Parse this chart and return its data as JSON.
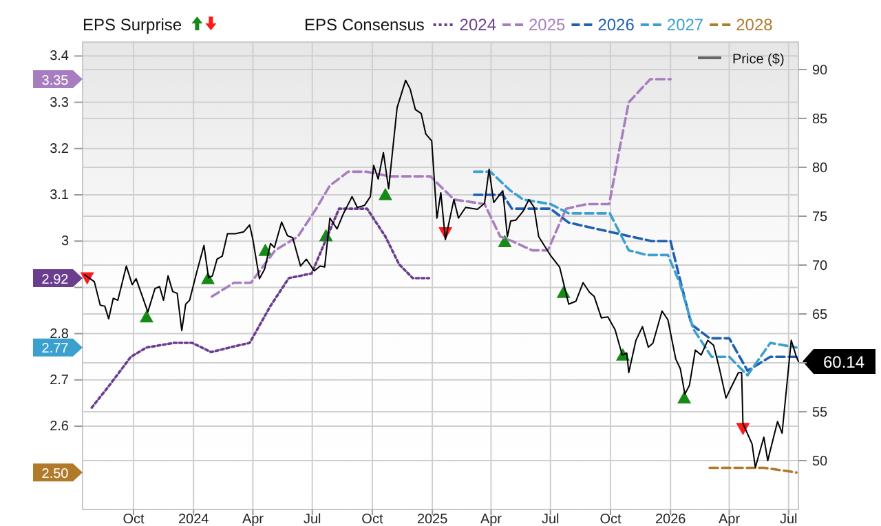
{
  "chart_data": {
    "type": "line",
    "legend_title": "EPS Consensus",
    "legend": "top",
    "grid": true,
    "xlim": [
      "2023-07-15",
      "2026-07-16"
    ],
    "xticks": [
      {
        "value": "2023-10-01",
        "label": "Oct"
      },
      {
        "value": "2024-01-01",
        "label": "2024"
      },
      {
        "value": "2024-04-01",
        "label": "Apr"
      },
      {
        "value": "2024-07-01",
        "label": "Jul"
      },
      {
        "value": "2024-10-01",
        "label": "Oct"
      },
      {
        "value": "2025-01-01",
        "label": "2025"
      },
      {
        "value": "2025-04-01",
        "label": "Apr"
      },
      {
        "value": "2025-07-01",
        "label": "Jul"
      },
      {
        "value": "2025-10-01",
        "label": "Oct"
      },
      {
        "value": "2026-01-01",
        "label": "2026"
      },
      {
        "value": "2026-04-01",
        "label": "Apr"
      },
      {
        "value": "2026-07-01",
        "label": "Jul"
      }
    ],
    "ylim": [
      2.42,
      3.43
    ],
    "yticks": [
      2.6,
      2.7,
      2.8,
      {
        "value": 2.9,
        "label": null
      },
      3,
      3.1,
      3.2,
      3.3,
      3.4
    ],
    "y2lim": [
      45,
      92.8
    ],
    "y2ticks": [
      50,
      55,
      {
        "value": 60,
        "label": null
      },
      65,
      70,
      75,
      80,
      85,
      90
    ],
    "annotations": [
      "EPS Surprise",
      "2.92",
      "3.35",
      "2.77",
      "2.50"
    ],
    "series": [
      {
        "name": "2024",
        "color": "#6a3d8f",
        "line_style": "dotted",
        "x": [
          "2023-07-29",
          "2023-08-26",
          "2023-09-27",
          "2023-10-21",
          "2023-12-02",
          "2023-12-30",
          "2024-01-28",
          "2024-02-25",
          "2024-03-27",
          "2024-04-28",
          "2024-05-26",
          "2024-06-30",
          "2024-08-11",
          "2024-09-23",
          "2024-10-21",
          "2024-11-11",
          "2024-12-02",
          "2024-12-27"
        ],
        "values": [
          2.64,
          2.69,
          2.75,
          2.77,
          2.78,
          2.78,
          2.76,
          2.77,
          2.78,
          2.86,
          2.92,
          2.93,
          3.07,
          3.07,
          3.01,
          2.95,
          2.92,
          2.92
        ]
      },
      {
        "name": "2025",
        "color": "#a77dc0",
        "line_style": "dashed",
        "x": [
          "2024-01-29",
          "2024-03-03",
          "2024-03-29",
          "2024-05-05",
          "2024-06-09",
          "2024-07-07",
          "2024-07-28",
          "2024-08-25",
          "2024-09-22",
          "2024-10-27",
          "2024-12-01",
          "2024-12-29",
          "2025-02-03",
          "2025-03-22",
          "2025-04-15",
          "2025-05-03",
          "2025-06-03",
          "2025-06-27",
          "2025-07-25",
          "2025-08-26",
          "2025-09-29",
          "2025-10-15",
          "2025-10-29",
          "2025-12-01",
          "2026-01-01"
        ],
        "values": [
          2.88,
          2.91,
          2.91,
          2.98,
          3.01,
          3.07,
          3.12,
          3.15,
          3.15,
          3.14,
          3.14,
          3.14,
          3.09,
          3.08,
          3.01,
          3.0,
          2.98,
          2.98,
          3.07,
          3.08,
          3.08,
          3.2,
          3.3,
          3.35,
          3.35
        ]
      },
      {
        "name": "2026",
        "color": "#2060b0",
        "line_style": "dashed",
        "x": [
          "2025-03-06",
          "2025-03-31",
          "2025-04-19",
          "2025-05-03",
          "2025-07-01",
          "2025-07-29",
          "2025-09-30",
          "2025-12-03",
          "2026-01-01",
          "2026-01-15",
          "2026-02-02",
          "2026-03-02",
          "2026-04-01",
          "2026-04-29",
          "2026-06-03",
          "2026-07-13"
        ],
        "values": [
          3.1,
          3.1,
          3.1,
          3.07,
          3.07,
          3.04,
          3.02,
          3.0,
          3.0,
          2.92,
          2.82,
          2.79,
          2.79,
          2.72,
          2.75,
          2.75
        ]
      },
      {
        "name": "2027",
        "color": "#3ba0d0",
        "line_style": "dashed",
        "x": [
          "2025-03-06",
          "2025-03-31",
          "2025-04-30",
          "2025-05-20",
          "2025-07-01",
          "2025-07-29",
          "2025-09-30",
          "2025-10-29",
          "2025-11-26",
          "2025-12-28",
          "2026-01-15",
          "2026-02-05",
          "2026-03-05",
          "2026-04-01",
          "2026-04-29",
          "2026-06-03",
          "2026-07-13"
        ],
        "values": [
          3.15,
          3.15,
          3.11,
          3.09,
          3.08,
          3.06,
          3.06,
          2.98,
          2.97,
          2.97,
          2.91,
          2.81,
          2.75,
          2.75,
          2.71,
          2.78,
          2.77
        ]
      },
      {
        "name": "2028",
        "color": "#b07a2a",
        "line_style": "dashed",
        "x": [
          "2026-03-02",
          "2026-05-11",
          "2026-05-25",
          "2026-07-13"
        ],
        "values": [
          2.51,
          2.51,
          2.51,
          2.5
        ]
      },
      {
        "name": "Price ($)",
        "axis": "y2",
        "color": "#000000",
        "line_style": "solid",
        "value_labels": [
          null,
          null,
          null,
          null,
          null,
          null,
          null,
          null,
          null,
          null,
          null,
          null,
          null,
          null,
          null,
          null,
          null,
          null,
          null,
          null,
          null,
          null,
          null,
          null,
          null,
          null,
          null,
          null,
          null,
          null,
          null,
          null,
          null,
          null,
          null,
          null,
          null,
          null,
          null,
          null,
          null,
          null,
          null,
          null,
          null,
          null,
          null,
          null,
          null,
          null,
          null,
          null,
          null,
          null,
          null,
          null,
          null,
          null,
          null,
          null,
          null,
          null,
          null,
          null,
          null,
          null,
          null,
          null,
          null,
          null,
          null,
          null,
          null,
          null,
          null,
          null,
          null,
          null,
          null,
          null,
          null,
          null,
          null,
          null,
          null,
          null,
          null,
          null,
          null,
          null,
          null,
          null,
          null,
          null,
          null,
          null,
          null,
          null,
          null,
          null,
          null,
          null,
          null,
          null,
          null,
          null,
          null,
          null,
          null,
          null,
          null,
          null,
          null,
          null,
          null,
          null,
          null,
          null,
          null,
          null,
          "60.14"
        ],
        "x": [
          "2023-07-18",
          "2023-08-02",
          "2023-08-11",
          "2023-08-18",
          "2023-08-24",
          "2023-08-31",
          "2023-09-07",
          "2023-09-20",
          "2023-09-29",
          "2023-10-05",
          "2023-10-23",
          "2023-11-03",
          "2023-11-10",
          "2023-11-16",
          "2023-11-23",
          "2023-11-30",
          "2023-12-07",
          "2023-12-14",
          "2023-12-20",
          "2023-12-26",
          "2024-01-06",
          "2024-01-17",
          "2024-01-24",
          "2024-01-30",
          "2024-02-06",
          "2024-02-14",
          "2024-02-22",
          "2024-03-05",
          "2024-03-18",
          "2024-03-27",
          "2024-04-01",
          "2024-04-11",
          "2024-04-19",
          "2024-04-28",
          "2024-05-04",
          "2024-05-15",
          "2024-05-24",
          "2024-06-01",
          "2024-06-13",
          "2024-06-22",
          "2024-07-04",
          "2024-07-13",
          "2024-07-20",
          "2024-07-28",
          "2024-08-08",
          "2024-08-18",
          "2024-08-31",
          "2024-09-08",
          "2024-09-19",
          "2024-09-28",
          "2024-10-03",
          "2024-10-10",
          "2024-10-18",
          "2024-10-26",
          "2024-11-08",
          "2024-11-21",
          "2024-11-28",
          "2024-12-06",
          "2024-12-15",
          "2024-12-22",
          "2024-12-31",
          "2025-01-08",
          "2025-01-14",
          "2025-01-21",
          "2025-02-03",
          "2025-02-10",
          "2025-02-21",
          "2025-03-11",
          "2025-03-22",
          "2025-03-29",
          "2025-04-05",
          "2025-04-19",
          "2025-04-26",
          "2025-05-01",
          "2025-05-09",
          "2025-05-20",
          "2025-05-29",
          "2025-06-06",
          "2025-06-13",
          "2025-07-01",
          "2025-07-15",
          "2025-07-29",
          "2025-08-09",
          "2025-08-20",
          "2025-08-30",
          "2025-09-06",
          "2025-09-17",
          "2025-09-27",
          "2025-10-08",
          "2025-10-19",
          "2025-10-26",
          "2025-10-29",
          "2025-11-09",
          "2025-11-19",
          "2025-11-28",
          "2025-12-05",
          "2025-12-19",
          "2025-12-28",
          "2026-01-09",
          "2026-01-16",
          "2026-01-23",
          "2026-01-30",
          "2026-02-08",
          "2026-02-17",
          "2026-02-27",
          "2026-03-08",
          "2026-03-17",
          "2026-03-27",
          "2026-04-04",
          "2026-04-15",
          "2026-04-20",
          "2026-04-22",
          "2026-05-06",
          "2026-05-11",
          "2026-05-24",
          "2026-05-30",
          "2026-06-14",
          "2026-06-21",
          "2026-07-05",
          "2026-07-13",
          "2026-07-16"
        ],
        "values": [
          69.0,
          68.3,
          65.9,
          65.8,
          64.5,
          66.6,
          66.4,
          69.9,
          68.0,
          68.6,
          65.2,
          67.6,
          67.8,
          66.4,
          68.9,
          67.3,
          67.1,
          63.3,
          66.0,
          66.4,
          69.3,
          72.0,
          68.7,
          68.9,
          70.6,
          70.9,
          73.2,
          73.2,
          73.4,
          74.1,
          72.6,
          68.6,
          69.6,
          72.2,
          71.8,
          74.4,
          73.0,
          72.8,
          69.9,
          70.6,
          69.4,
          69.9,
          69.8,
          74.8,
          73.7,
          75.3,
          77.0,
          75.9,
          76.1,
          77.0,
          80.2,
          78.8,
          81.5,
          77.8,
          86.1,
          88.9,
          88.0,
          85.9,
          85.5,
          83.4,
          82.7,
          74.8,
          77.4,
          72.6,
          76.7,
          74.8,
          75.9,
          75.7,
          76.3,
          79.8,
          76.4,
          77.6,
          72.9,
          74.5,
          74.6,
          75.5,
          76.7,
          75.9,
          72.9,
          71.0,
          69.8,
          66.0,
          66.3,
          68.2,
          67.2,
          66.8,
          64.6,
          64.7,
          63.4,
          60.8,
          61.0,
          59.0,
          62.3,
          63.7,
          61.6,
          62.0,
          65.3,
          64.4,
          60.4,
          59.4,
          56.8,
          57.7,
          61.3,
          60.8,
          62.3,
          61.8,
          59.4,
          56.4,
          57.5,
          59.0,
          59.0,
          53.8,
          51.7,
          49.3,
          52.4,
          50.0,
          54.0,
          52.8,
          62.3,
          60.6,
          60.14
        ]
      },
      {
        "type": "scatter",
        "axis": "y2",
        "marker": "triangle",
        "color": "#168a16",
        "x": [
          "2023-10-21",
          "2024-01-23",
          "2024-04-20",
          "2024-07-22",
          "2024-10-21",
          "2025-04-22",
          "2025-07-21",
          "2025-10-20",
          "2026-01-22"
        ],
        "values": [
          64.7,
          68.6,
          71.5,
          73.0,
          77.2,
          72.4,
          67.2,
          60.8,
          56.4
        ]
      },
      {
        "type": "scatter",
        "axis": "y2",
        "marker": "triangle",
        "color": "#ff1a1a",
        "x": [
          "2023-07-22",
          "2025-01-21",
          "2026-04-22"
        ],
        "values": [
          68.7,
          73.3,
          53.3
        ]
      }
    ]
  }
}
